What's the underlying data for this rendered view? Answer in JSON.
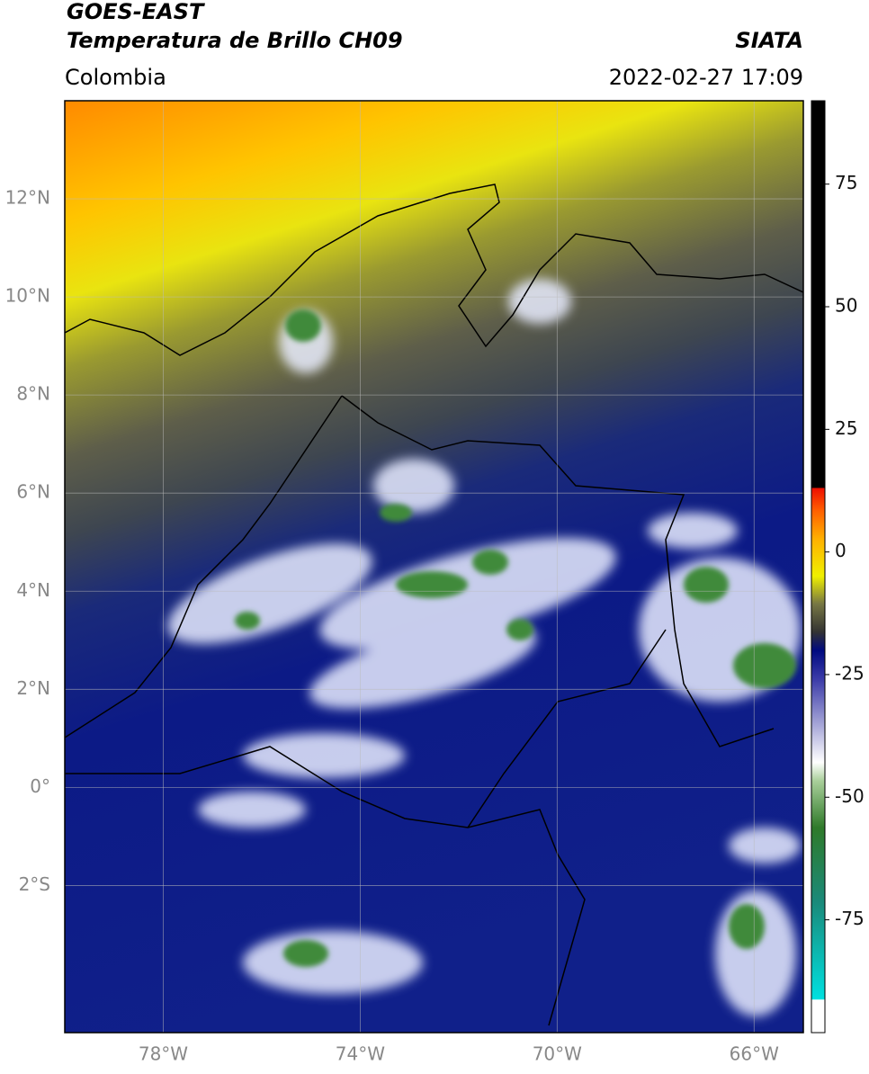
{
  "header": {
    "source": "GOES-EAST",
    "title": "Temperatura de Brillo CH09",
    "agency": "SIATA",
    "region": "Colombia",
    "datetime": "2022-02-27 17:09"
  },
  "map": {
    "xlim": [
      -80,
      -65
    ],
    "ylim": [
      -5,
      14
    ],
    "xticks": [
      {
        "value": -78,
        "label": "78°W"
      },
      {
        "value": -74,
        "label": "74°W"
      },
      {
        "value": -70,
        "label": "70°W"
      },
      {
        "value": -66,
        "label": "66°W"
      }
    ],
    "yticks": [
      {
        "value": 12,
        "label": "12°N"
      },
      {
        "value": 10,
        "label": "10°N"
      },
      {
        "value": 8,
        "label": "8°N"
      },
      {
        "value": 6,
        "label": "6°N"
      },
      {
        "value": 4,
        "label": "4°N"
      },
      {
        "value": 2,
        "label": "2°N"
      },
      {
        "value": 0,
        "label": "0°"
      },
      {
        "value": -2,
        "label": "2°S"
      }
    ],
    "grid": true
  },
  "colorbar": {
    "lim": [
      -98,
      92
    ],
    "ticks": [
      75,
      50,
      25,
      0,
      -25,
      -50,
      -75
    ]
  }
}
